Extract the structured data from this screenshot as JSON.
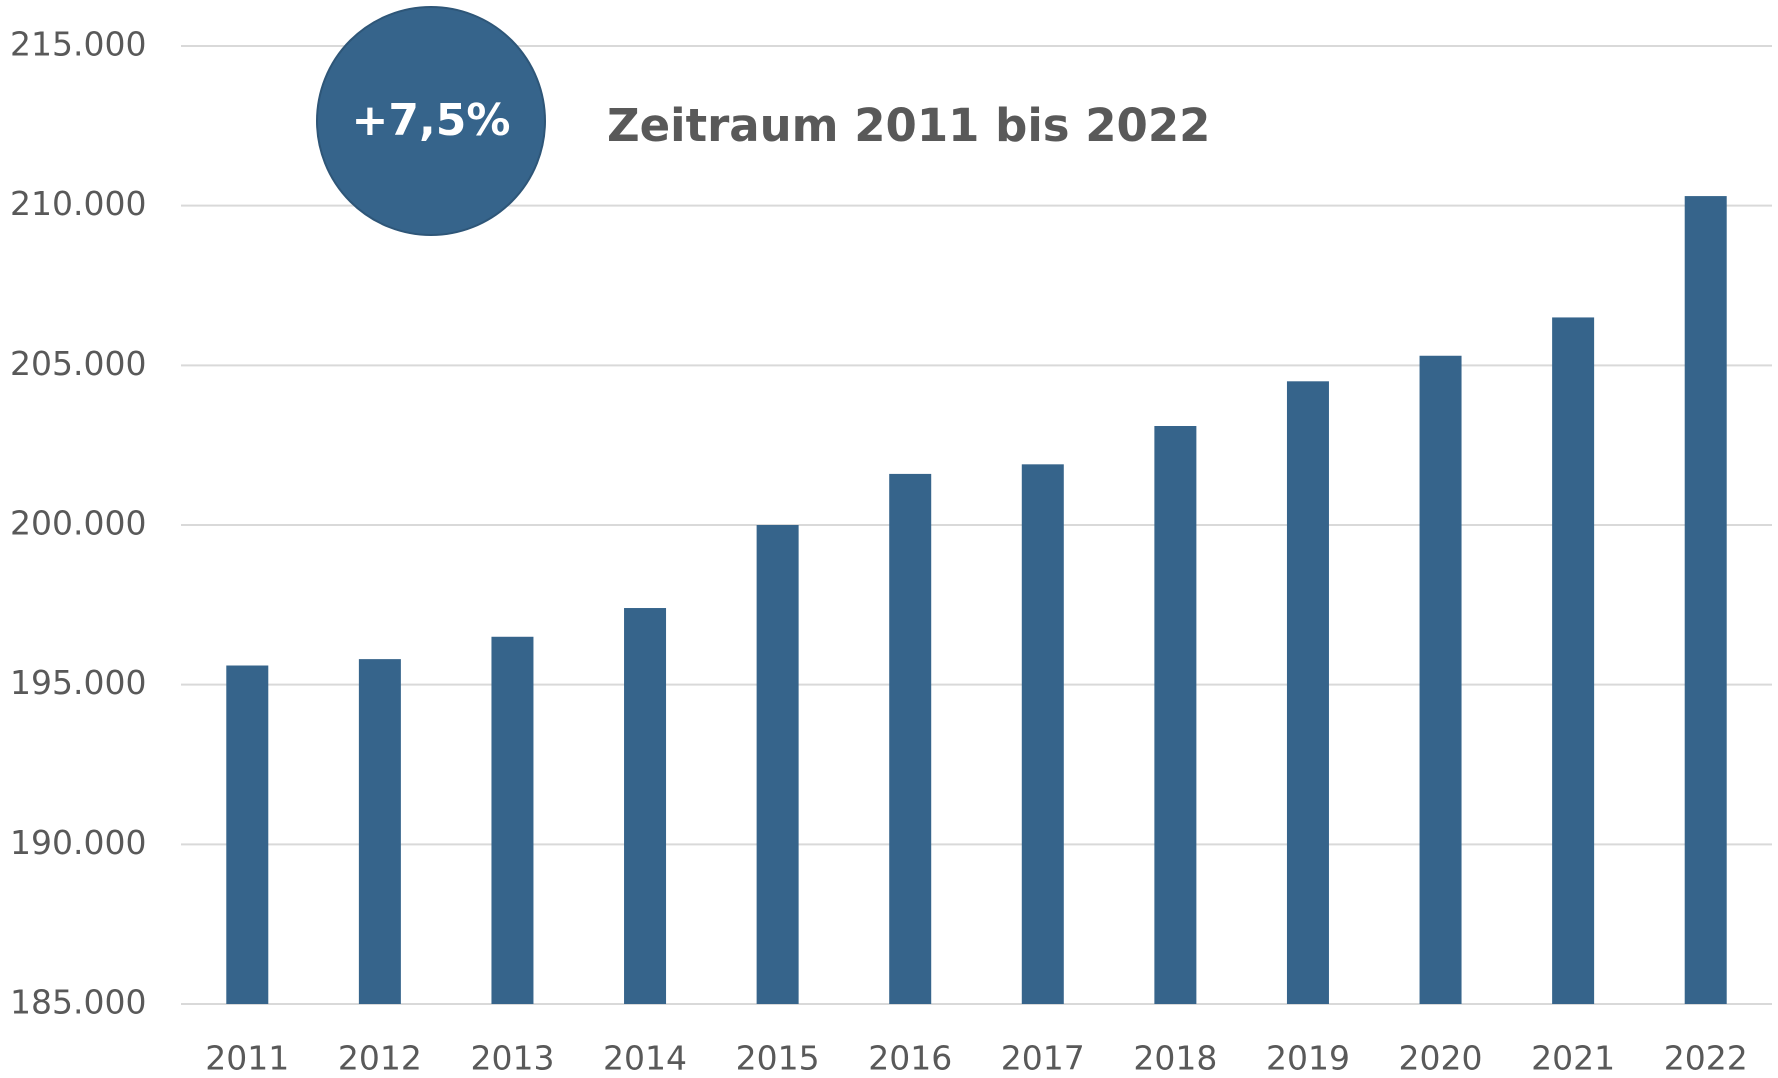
{
  "chart_data": {
    "type": "bar",
    "subtitle": "Zeitraum 2011 bis 2022",
    "annotation": "+7,5%",
    "categories": [
      "2011",
      "2012",
      "2013",
      "2014",
      "2015",
      "2016",
      "2017",
      "2018",
      "2019",
      "2020",
      "2021",
      "2022"
    ],
    "values": [
      195600,
      195800,
      196500,
      197400,
      200000,
      201600,
      201900,
      203100,
      204500,
      205300,
      206500,
      210300
    ],
    "color": "#36648b",
    "ylim": [
      185000,
      215000
    ],
    "yticks": [
      {
        "value": 185000,
        "label": "185.000"
      },
      {
        "value": 190000,
        "label": "190.000"
      },
      {
        "value": 195000,
        "label": "195.000"
      },
      {
        "value": 200000,
        "label": "200.000"
      },
      {
        "value": 205000,
        "label": "205.000"
      },
      {
        "value": 210000,
        "label": "210.000"
      },
      {
        "value": 215000,
        "label": "215.000"
      }
    ],
    "grid": true
  }
}
